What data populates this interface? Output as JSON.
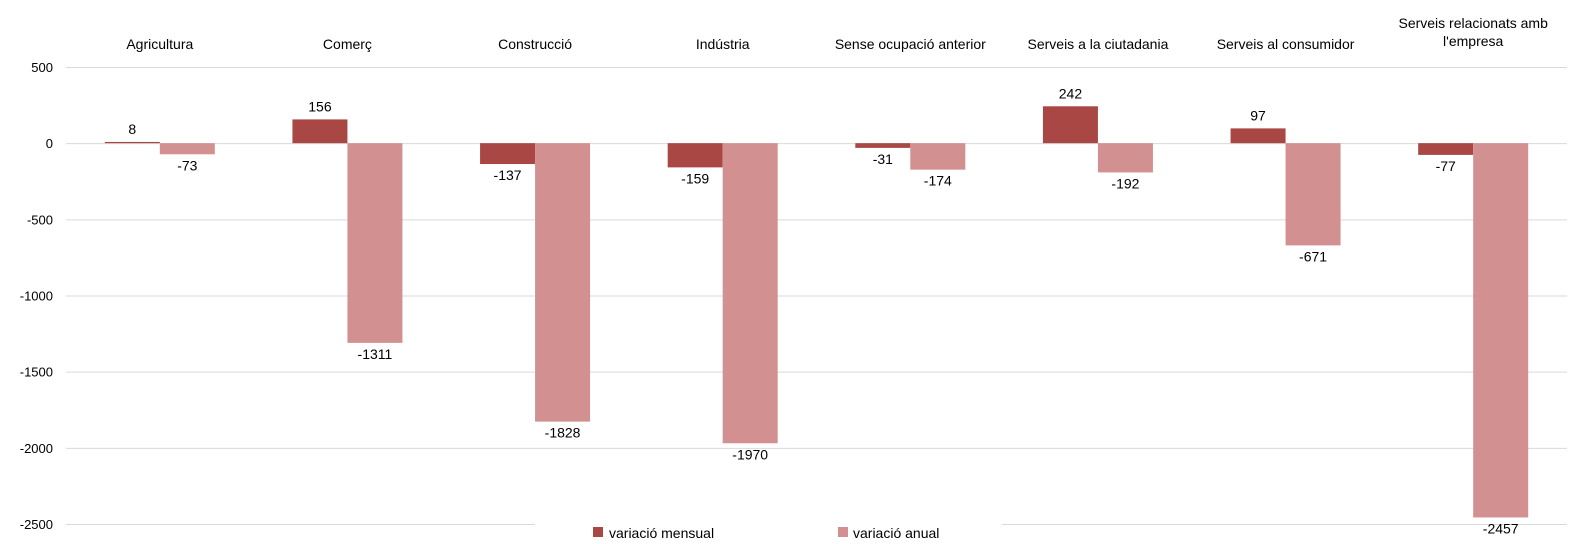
{
  "chart_data": {
    "type": "bar",
    "categories": [
      [
        "Agricultura"
      ],
      [
        "Comerç"
      ],
      [
        "Construcció"
      ],
      [
        "Indústria"
      ],
      [
        "Sense ocupació anterior"
      ],
      [
        "Serveis a la ciutadania"
      ],
      [
        "Serveis al consumidor"
      ],
      [
        "Serveis relacionats amb",
        "l'empresa"
      ]
    ],
    "series": [
      {
        "name": "variació mensual",
        "color": "#a84743",
        "values": [
          8,
          156,
          -137,
          -159,
          -31,
          242,
          97,
          -77
        ]
      },
      {
        "name": "variació anual",
        "color": "#d29190",
        "values": [
          -73,
          -1311,
          -1828,
          -1970,
          -174,
          -192,
          -671,
          -2457
        ]
      }
    ],
    "ylim": [
      -2500,
      500
    ],
    "yticks": [
      500,
      0,
      -500,
      -1000,
      -1500,
      -2000,
      -2500
    ],
    "grid": true,
    "legend_position": "bottom",
    "category_labels_position": "top"
  }
}
